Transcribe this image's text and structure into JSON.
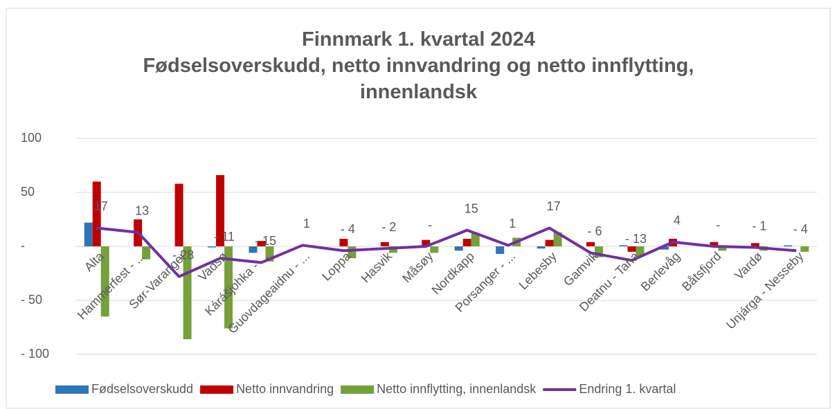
{
  "chart_data": {
    "type": "bar-line",
    "title": "Finnmark 1. kvartal 2024",
    "subtitle": "Fødselsoverskudd, netto innvandring og netto innflytting, innenlandsk",
    "categories": [
      "Alta",
      "Hammerfest - ...",
      "Sør-Varanger",
      "Vadsø",
      "Kárášjohka - ...",
      "Guovdageaidnu - ...",
      "Loppa",
      "Hasvik",
      "Måsøy",
      "Nordkapp",
      "Porsanger - ...",
      "Lebesby",
      "Gamvik",
      "Deatnu - Tana",
      "Berlevåg",
      "Båtsfjord",
      "Vardø",
      "Unjárga - Nesseby"
    ],
    "series": [
      {
        "name": "Fødselsoverskudd",
        "color": "#2e75b6",
        "kind": "bar",
        "values": [
          22,
          0,
          0,
          -1,
          -6,
          0,
          0,
          0,
          0,
          -4,
          -7,
          -2,
          0,
          1,
          -3,
          0,
          0,
          1
        ]
      },
      {
        "name": "Netto innvandring",
        "color": "#c00000",
        "kind": "bar",
        "values": [
          60,
          25,
          58,
          66,
          5,
          0,
          7,
          4,
          6,
          7,
          0,
          6,
          4,
          -5,
          7,
          4,
          3,
          0
        ]
      },
      {
        "name": "Netto innflytting, innenlandsk",
        "color": "#76a03c",
        "kind": "bar",
        "values": [
          -65,
          -12,
          -86,
          -76,
          -14,
          1,
          -11,
          -6,
          -6,
          12,
          8,
          13,
          -10,
          -9,
          0,
          -4,
          -4,
          -5
        ]
      },
      {
        "name": "Endring 1. kvartal",
        "color": "#7030a0",
        "kind": "line",
        "values": [
          17,
          13,
          -28,
          -11,
          -15,
          1,
          -4,
          -2,
          0,
          15,
          1,
          17,
          -6,
          -13,
          4,
          0,
          -1,
          -4
        ],
        "value_labels": [
          "17",
          "13",
          "- 28",
          "- 11",
          "- 15",
          "1",
          "- 4",
          "- 2",
          "-",
          "15",
          "1",
          "17",
          "- 6",
          "- 13",
          "4",
          "-",
          "- 1",
          "- 4"
        ]
      }
    ],
    "ylim": [
      -100,
      100
    ],
    "yticks": [
      {
        "value": -100,
        "label": "- 100"
      },
      {
        "value": -50,
        "label": "- 50"
      },
      {
        "value": 0,
        "label": "-"
      },
      50,
      100
    ],
    "grid": true,
    "legend": "bottom"
  }
}
